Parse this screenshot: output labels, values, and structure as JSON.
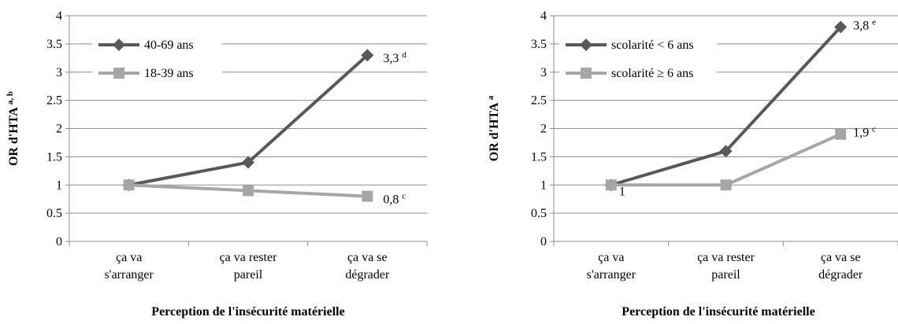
{
  "chart_data": [
    {
      "type": "line",
      "categories": [
        "ça va|s'arranger",
        "ça va rester|pareil",
        "ça va se|dégrader"
      ],
      "xlabel": "Perception de l'insécurité matérielle",
      "ylabel": "OR d'HTA",
      "ylabel_sup": "a, b",
      "ylim": [
        0,
        4
      ],
      "yticks": [
        0,
        0.5,
        1,
        1.5,
        2,
        2.5,
        3,
        3.5,
        4
      ],
      "grid": true,
      "legend_position": "top-left",
      "series": [
        {
          "name": "40-69 ans",
          "values": [
            1,
            1.4,
            3.3
          ],
          "color": "#595959",
          "marker": "diamond"
        },
        {
          "name": "18-39 ans",
          "values": [
            1,
            0.9,
            0.8
          ],
          "color": "#a6a6a6",
          "marker": "square"
        }
      ],
      "annotations": [
        {
          "series": 0,
          "point": 2,
          "text": "3,3",
          "sup": "d"
        },
        {
          "series": 1,
          "point": 2,
          "text": "0,8",
          "sup": "c"
        }
      ]
    },
    {
      "type": "line",
      "categories": [
        "ça va|s'arranger",
        "ça va rester|pareil",
        "ça va se|dégrader"
      ],
      "xlabel": "Perception de l'insécurité matérielle",
      "ylabel": "OR d'HTA",
      "ylabel_sup": "a",
      "ylim": [
        0,
        4
      ],
      "yticks": [
        0,
        0.5,
        1,
        1.5,
        2,
        2.5,
        3,
        3.5,
        4
      ],
      "grid": true,
      "legend_position": "top-left",
      "series": [
        {
          "name": "scolarité < 6 ans",
          "values": [
            1,
            1.6,
            3.8
          ],
          "color": "#595959",
          "marker": "diamond"
        },
        {
          "name": "scolarité ≥ 6 ans",
          "values": [
            1,
            1,
            1.9
          ],
          "color": "#a6a6a6",
          "marker": "square"
        }
      ],
      "annotations": [
        {
          "series": 0,
          "point": 2,
          "text": "3,8",
          "sup": "e"
        },
        {
          "series": 1,
          "point": 2,
          "text": "1,9",
          "sup": "c"
        },
        {
          "series": 1,
          "point": 0,
          "text": "1",
          "sup": ""
        }
      ]
    }
  ]
}
